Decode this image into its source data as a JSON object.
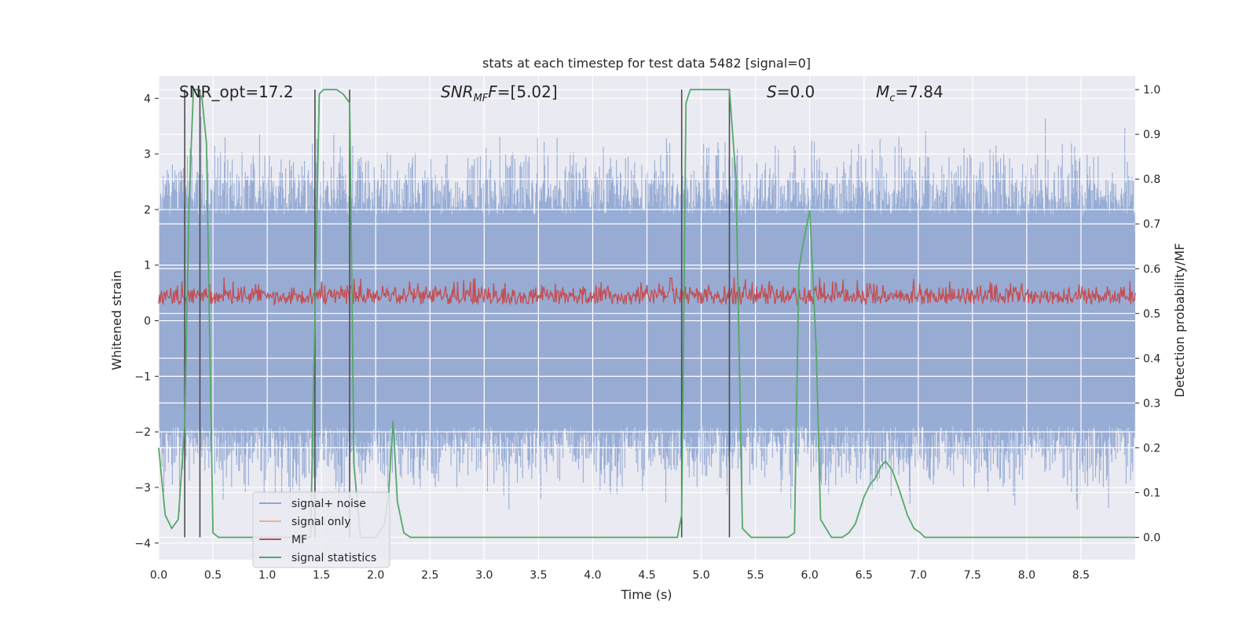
{
  "chart_data": {
    "type": "line",
    "title": "stats at each timestep for test data 5482 [signal=0]",
    "xlabel": "Time (s)",
    "ylabel_left": "Whitened strain",
    "ylabel_right": "Detection probability/MF",
    "xlim": [
      0.0,
      9.0
    ],
    "ylim_left": [
      -4.3,
      4.4
    ],
    "ylim_right": [
      -0.05,
      1.03
    ],
    "x_ticks": [
      "0.0",
      "0.5",
      "1.0",
      "1.5",
      "2.0",
      "2.5",
      "3.0",
      "3.5",
      "4.0",
      "4.5",
      "5.0",
      "5.5",
      "6.0",
      "6.5",
      "7.0",
      "7.5",
      "8.0",
      "8.5"
    ],
    "y_ticks_left": [
      "−4",
      "−3",
      "−2",
      "−1",
      "0",
      "1",
      "2",
      "3",
      "4"
    ],
    "y_ticks_right": [
      "0.0",
      "0.1",
      "0.2",
      "0.3",
      "0.4",
      "0.5",
      "0.6",
      "0.7",
      "0.8",
      "0.9",
      "1.0"
    ],
    "annotations": {
      "snr_opt": "SNR_opt=17.2",
      "snr_mf_main": "SNR",
      "snr_mf_sub": "MF",
      "snr_mf_val": "=[5.02]",
      "s_main": "S",
      "s_val": "=0.0",
      "mc_main": "M",
      "mc_sub": "c",
      "mc_val": "=7.84"
    },
    "legend": [
      {
        "label": "signal+ noise",
        "color": "#8fa6d2"
      },
      {
        "label": "signal only",
        "color": "#eeb095"
      },
      {
        "label": "MF",
        "color": "#c44e52"
      },
      {
        "label": "signal statistics",
        "color": "#55a868"
      }
    ],
    "series": [
      {
        "name": "signal+ noise",
        "axis": "left",
        "description": "noise band",
        "approx_range": [
          -3.7,
          4.0
        ]
      },
      {
        "name": "MF",
        "axis": "right",
        "approx_range": [
          0.5,
          0.6
        ]
      },
      {
        "name": "signal statistics",
        "axis": "right",
        "x": [
          0.0,
          0.06,
          0.12,
          0.18,
          0.24,
          0.28,
          0.32,
          0.36,
          0.4,
          0.44,
          0.5,
          0.55,
          0.6,
          0.8,
          1.0,
          1.2,
          1.4,
          1.44,
          1.48,
          1.52,
          1.58,
          1.64,
          1.7,
          1.76,
          1.8,
          1.86,
          1.92,
          2.0,
          2.08,
          2.12,
          2.16,
          2.2,
          2.26,
          2.32,
          2.4,
          3.0,
          4.0,
          4.7,
          4.78,
          4.82,
          4.86,
          4.9,
          5.0,
          5.1,
          5.2,
          5.26,
          5.32,
          5.38,
          5.46,
          5.6,
          5.8,
          5.86,
          5.9,
          5.95,
          6.0,
          6.06,
          6.1,
          6.2,
          6.3,
          6.36,
          6.42,
          6.5,
          6.56,
          6.6,
          6.66,
          6.7,
          6.76,
          6.82,
          6.9,
          6.96,
          7.02,
          7.06,
          7.12,
          7.2,
          7.6,
          8.0,
          9.0
        ],
        "y": [
          0.2,
          0.05,
          0.02,
          0.04,
          0.25,
          0.75,
          1.0,
          1.0,
          0.98,
          0.88,
          0.01,
          0.0,
          0.0,
          0.0,
          0.0,
          0.0,
          0.0,
          0.5,
          0.99,
          1.0,
          1.0,
          1.0,
          0.99,
          0.97,
          0.16,
          0.0,
          0.0,
          0.0,
          0.03,
          0.1,
          0.26,
          0.08,
          0.01,
          0.0,
          0.0,
          0.0,
          0.0,
          0.0,
          0.0,
          0.05,
          0.97,
          1.0,
          1.0,
          1.0,
          1.0,
          1.0,
          0.8,
          0.02,
          0.0,
          0.0,
          0.0,
          0.01,
          0.6,
          0.67,
          0.73,
          0.42,
          0.04,
          0.0,
          0.0,
          0.01,
          0.03,
          0.09,
          0.12,
          0.13,
          0.16,
          0.17,
          0.15,
          0.11,
          0.05,
          0.02,
          0.01,
          0.0,
          0.0,
          0.0,
          0.0,
          0.0,
          0.0
        ]
      }
    ],
    "vertical_lines_x": [
      0.24,
      0.38,
      1.44,
      1.76,
      4.82,
      5.26
    ]
  }
}
